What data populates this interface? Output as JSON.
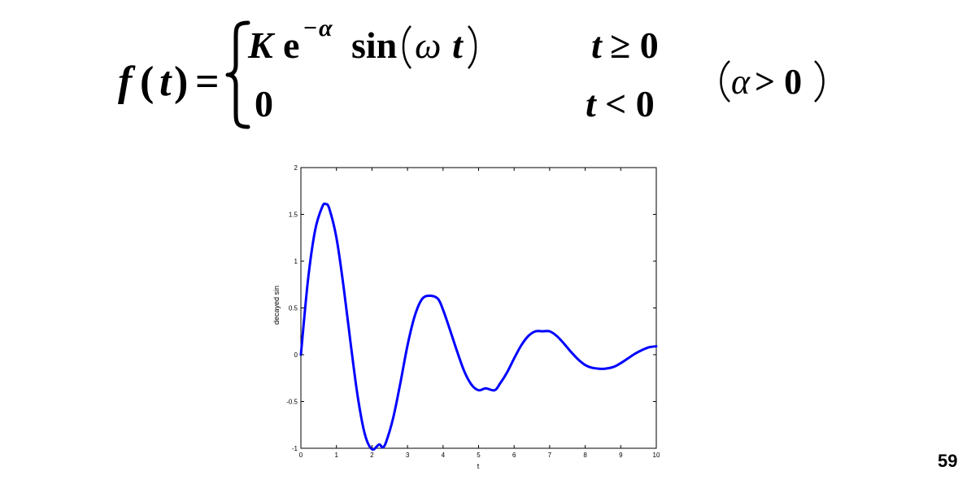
{
  "formula": {
    "lhs_func": "f",
    "lhs_open": "(",
    "lhs_var": "t",
    "lhs_close": ")",
    "equals": "=",
    "case1_K": "K",
    "case1_e": "e",
    "case1_exp_minus": "−",
    "case1_exp_alpha": "α",
    "case1_sin": "sin",
    "case1_omega": "ω",
    "case1_t": "t",
    "case1_condition_t": "t",
    "case1_condition_rel": "≥ 0",
    "case2_value": "0",
    "case2_condition_t": "t",
    "case2_condition_rel": "< 0",
    "constraint_alpha": "α",
    "constraint_rel": "> 0"
  },
  "chart_data": {
    "type": "line",
    "xlabel": "t",
    "ylabel": "decayed sin",
    "xlim": [
      0,
      10
    ],
    "ylim": [
      -1,
      2
    ],
    "xticks": [
      "0",
      "1",
      "2",
      "3",
      "4",
      "5",
      "6",
      "7",
      "8",
      "9",
      "10"
    ],
    "yticks": [
      "-1",
      "-0.5",
      "0",
      "0.5",
      "1",
      "1.5",
      "2"
    ],
    "series": [
      {
        "color": "#0000ff",
        "x": [
          0,
          0.2,
          0.4,
          0.6,
          0.7,
          0.8,
          1.0,
          1.2,
          1.4,
          1.6,
          1.8,
          2.0,
          2.2,
          2.3,
          2.4,
          2.6,
          2.8,
          3.0,
          3.2,
          3.4,
          3.6,
          3.85,
          4.0,
          4.2,
          4.4,
          4.6,
          4.8,
          5.0,
          5.2,
          5.45,
          5.6,
          5.8,
          6.0,
          6.2,
          6.4,
          6.6,
          6.8,
          7.0,
          7.2,
          7.4,
          7.6,
          7.8,
          8.0,
          8.2,
          8.4,
          8.55,
          8.8,
          9.0,
          9.2,
          9.4,
          9.6,
          9.8,
          10.0
        ],
        "y": [
          0,
          0.8,
          1.33,
          1.58,
          1.61,
          1.56,
          1.25,
          0.73,
          0.12,
          -0.45,
          -0.85,
          -1.01,
          -0.96,
          -0.99,
          -0.93,
          -0.67,
          -0.3,
          0.1,
          0.41,
          0.59,
          0.63,
          0.6,
          0.48,
          0.26,
          0.03,
          -0.18,
          -0.32,
          -0.38,
          -0.36,
          -0.38,
          -0.31,
          -0.19,
          -0.04,
          0.1,
          0.2,
          0.25,
          0.25,
          0.25,
          0.2,
          0.12,
          0.03,
          -0.05,
          -0.11,
          -0.14,
          -0.15,
          -0.15,
          -0.13,
          -0.09,
          -0.04,
          0.01,
          0.05,
          0.08,
          0.09
        ]
      }
    ]
  },
  "page_number": "59"
}
